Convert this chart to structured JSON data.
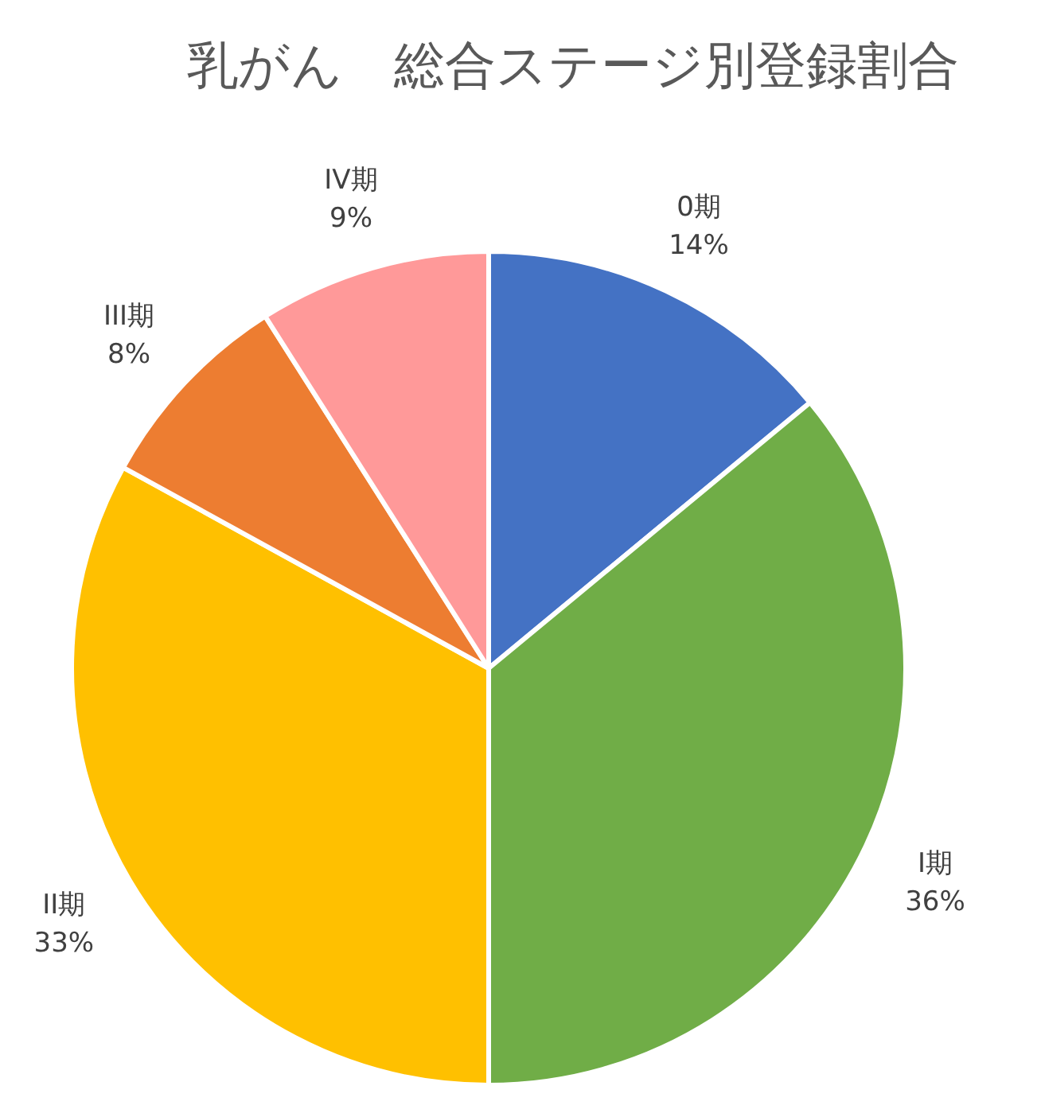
{
  "chart_data": {
    "type": "pie",
    "title": "乳がん　総合ステージ別登録割合",
    "categories": [
      "0期",
      "I期",
      "II期",
      "III期",
      "IV期"
    ],
    "values": [
      14,
      36,
      33,
      8,
      9
    ],
    "colors": [
      "#4472c4",
      "#70ad47",
      "#ffc000",
      "#ed7d31",
      "#ff9999"
    ],
    "value_labels": [
      "14%",
      "36%",
      "33%",
      "8%",
      "9%"
    ]
  }
}
